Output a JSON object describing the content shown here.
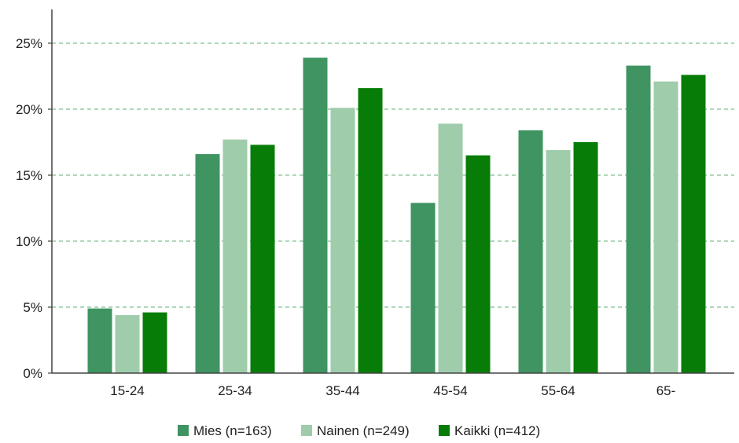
{
  "chart_data": {
    "type": "bar",
    "title": "",
    "xlabel": "",
    "ylabel": "",
    "categories": [
      "15-24",
      "25-34",
      "35-44",
      "45-54",
      "55-64",
      "65-"
    ],
    "series": [
      {
        "name": "Mies (n=163)",
        "color": "#3f9461",
        "values": [
          4.9,
          16.6,
          23.9,
          12.9,
          18.4,
          23.3
        ]
      },
      {
        "name": "Nainen (n=249)",
        "color": "#9fccab",
        "values": [
          4.4,
          17.7,
          20.1,
          18.9,
          16.9,
          22.1
        ]
      },
      {
        "name": "Kaikki (n=412)",
        "color": "#077d07",
        "values": [
          4.6,
          17.3,
          21.6,
          16.5,
          17.5,
          22.6
        ]
      }
    ],
    "ylim": [
      0,
      25
    ],
    "yticks": [
      0,
      5,
      10,
      15,
      20,
      25
    ],
    "ytick_labels": [
      "0%",
      "5%",
      "10%",
      "15%",
      "20%",
      "25%"
    ],
    "grid": true,
    "grid_color": "#7fbf8f",
    "legend_position": "bottom-center"
  }
}
